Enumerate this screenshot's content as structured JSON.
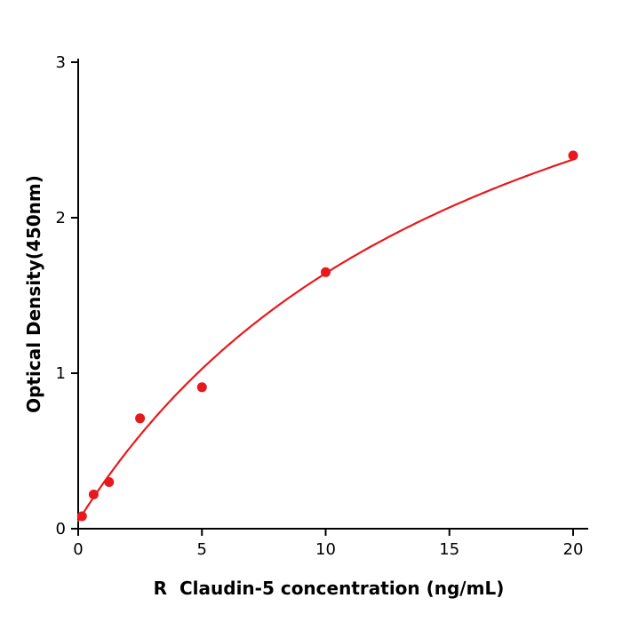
{
  "chart_data": {
    "type": "scatter",
    "title": "",
    "xlabel": "R  Claudin-5 concentration (ng/mL)",
    "ylabel": "Optical Density(450nm)",
    "x": [
      0.156,
      0.625,
      1.25,
      2.5,
      5,
      10,
      20
    ],
    "y": [
      0.08,
      0.22,
      0.3,
      0.71,
      0.91,
      1.65,
      2.4
    ],
    "xlim": [
      0,
      20
    ],
    "ylim": [
      0,
      3
    ],
    "xticks": [
      0,
      5,
      10,
      15,
      20
    ],
    "yticks": [
      0,
      1,
      2,
      3
    ],
    "grid": false,
    "legend": false,
    "marker_color": "#e8191c",
    "line_color": "#e8191c",
    "axis_color": "#000000",
    "curve_fit": {
      "model": "saturating: y = vmax*x/(km+x) + offset",
      "vmax": 4.3,
      "km": 17,
      "offset": 0.05
    }
  }
}
